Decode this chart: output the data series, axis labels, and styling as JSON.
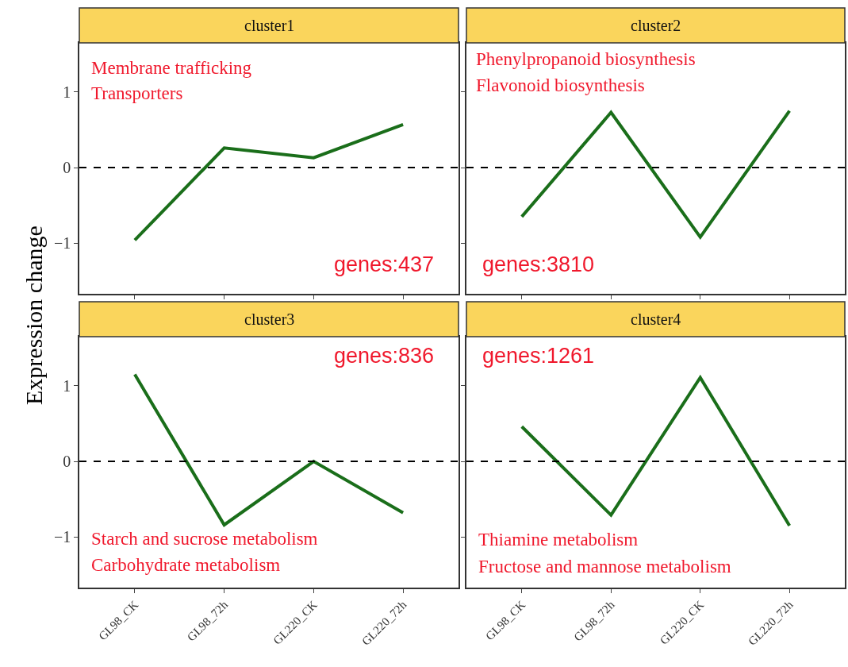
{
  "chart_data": [
    {
      "type": "line",
      "title": "cluster1",
      "ylabel": "Expression change",
      "categories": [
        "GL98_CK",
        "GL98_72h",
        "GL220_CK",
        "GL220_72h"
      ],
      "series": [
        {
          "color": "#1a6e1a",
          "values": [
            -0.96,
            0.26,
            0.13,
            0.57
          ]
        }
      ],
      "ylim": [
        -1.67,
        1.65
      ],
      "yticks": [
        -1,
        0,
        1
      ],
      "tick_labels": "y",
      "ref_lines": [
        {
          "axis": "y",
          "value": 0,
          "color": "#000000",
          "line_style": "dashed"
        }
      ],
      "annotations": [
        "Membrane trafficking",
        "Transporters",
        "genes:437"
      ]
    },
    {
      "type": "line",
      "title": "cluster2",
      "categories": [
        "GL98_CK",
        "GL98_72h",
        "GL220_CK",
        "GL220_72h"
      ],
      "series": [
        {
          "color": "#1a6e1a",
          "values": [
            -0.65,
            0.73,
            -0.92,
            0.75
          ]
        }
      ],
      "ylim": [
        -1.67,
        1.65
      ],
      "yticks": [
        -1,
        0,
        1
      ],
      "tick_labels": false,
      "ref_lines": [
        {
          "axis": "y",
          "value": 0,
          "color": "#000000",
          "line_style": "dashed"
        }
      ],
      "annotations": [
        "Phenylpropanoid biosynthesis",
        "Flavonoid biosynthesis",
        "genes:3810"
      ]
    },
    {
      "type": "line",
      "title": "cluster3",
      "categories": [
        "GL98_CK",
        "GL98_72h",
        "GL220_CK",
        "GL220_72h"
      ],
      "series": [
        {
          "color": "#1a6e1a",
          "values": [
            1.15,
            -0.84,
            0.0,
            -0.68
          ]
        }
      ],
      "ylim": [
        -1.67,
        1.65
      ],
      "yticks": [
        -1,
        0,
        1
      ],
      "ref_lines": [
        {
          "axis": "y",
          "value": 0,
          "color": "#000000",
          "line_style": "dashed"
        }
      ],
      "annotations": [
        "genes:836",
        "Starch and sucrose metabolism",
        "Carbohydrate metabolism"
      ]
    },
    {
      "type": "line",
      "title": "cluster4",
      "categories": [
        "GL98_CK",
        "GL98_72h",
        "GL220_CK",
        "GL220_72h"
      ],
      "series": [
        {
          "color": "#1a6e1a",
          "values": [
            0.46,
            -0.71,
            1.11,
            -0.85
          ]
        }
      ],
      "ylim": [
        -1.67,
        1.65
      ],
      "yticks": [
        -1,
        0,
        1
      ],
      "tick_labels": "x",
      "ref_lines": [
        {
          "axis": "y",
          "value": 0,
          "color": "#000000",
          "line_style": "dashed"
        }
      ],
      "annotations": [
        "genes:1261",
        "Thiamine metabolism",
        "Fructose and mannose metabolism"
      ]
    }
  ]
}
